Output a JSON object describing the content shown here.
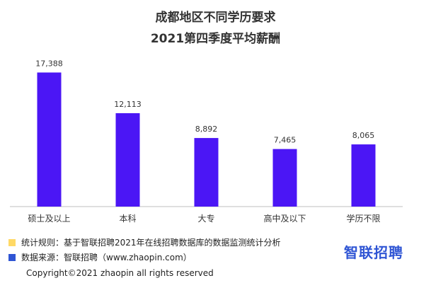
{
  "title_line1": "成都地区不同学历要求",
  "title_line2": "2021第四季度平均薪酬",
  "chart_data": {
    "type": "bar",
    "categories": [
      "硕士及以上",
      "本科",
      "大专",
      "高中及以下",
      "学历不限"
    ],
    "values": [
      17388,
      12113,
      8892,
      7465,
      8065
    ],
    "value_labels": [
      "17,388",
      "12,113",
      "8,892",
      "7,465",
      "8,065"
    ],
    "bar_color": "#4b16f5",
    "ylim": [
      0,
      20000
    ],
    "grid": false
  },
  "notes": [
    {
      "text": "统计规则：基于智联招聘2021年在线招聘数据库的数据监测统计分析",
      "color": "#ffd966"
    },
    {
      "text": "数据来源：智联招聘（www.zhaopin.com）",
      "color": "#2f55d4"
    }
  ],
  "brand": "智联招聘",
  "copyright": "Copyright©2021 zhaopin all rights reserved"
}
